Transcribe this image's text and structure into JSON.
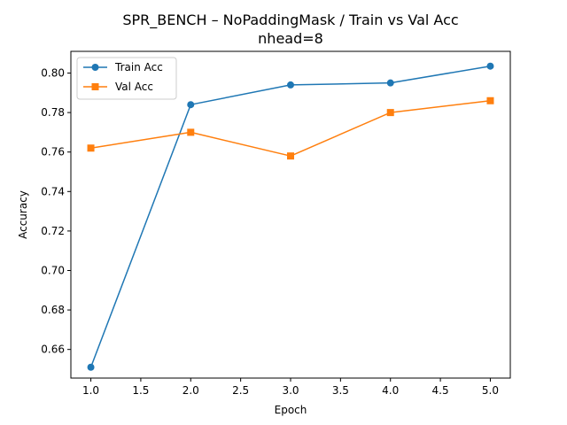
{
  "chart_data": {
    "type": "line",
    "title": "SPR_BENCH – NoPaddingMask / Train vs Val Acc",
    "subtitle": "nhead=8",
    "xlabel": "Epoch",
    "ylabel": "Accuracy",
    "xlim": [
      0.8,
      5.2
    ],
    "ylim": [
      0.6455,
      0.811
    ],
    "x_ticks": [
      "1.0",
      "1.5",
      "2.0",
      "2.5",
      "3.0",
      "3.5",
      "4.0",
      "4.5",
      "5.0"
    ],
    "y_ticks": [
      "0.66",
      "0.68",
      "0.70",
      "0.72",
      "0.74",
      "0.76",
      "0.78",
      "0.80"
    ],
    "grid": false,
    "legend_position": "top-left",
    "x": [
      1,
      2,
      3,
      4,
      5
    ],
    "series": [
      {
        "name": "Train Acc",
        "values": [
          0.651,
          0.784,
          0.794,
          0.795,
          0.8035
        ],
        "color": "#1f77b4",
        "marker": "circle"
      },
      {
        "name": "Val Acc",
        "values": [
          0.762,
          0.77,
          0.758,
          0.78,
          0.786
        ],
        "color": "#ff7f0e",
        "marker": "square"
      }
    ]
  }
}
